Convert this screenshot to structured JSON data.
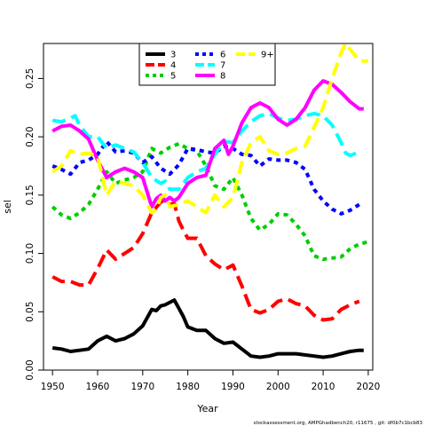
{
  "chart_data": {
    "type": "line",
    "title": "",
    "xlabel": "Year",
    "ylabel": "sel",
    "xlim": [
      1948,
      2021
    ],
    "ylim": [
      0,
      0.28
    ],
    "x_ticks": [
      1950,
      1960,
      1970,
      1980,
      1990,
      2000,
      2010,
      2020
    ],
    "y_ticks": [
      0.0,
      0.05,
      0.1,
      0.15,
      0.2,
      0.25
    ],
    "y_tick_labels": [
      "0.00",
      "0.05",
      "0.10",
      "0.15",
      "0.20",
      "0.25"
    ],
    "grid": false,
    "legend_position": "top-center",
    "footer": "stockassessment.org, AMPGhadbench20, r11675 , git: df0b7c1bcb83",
    "series": [
      {
        "name": "3",
        "color": "#000000",
        "dash": "solid",
        "x": [
          1950,
          1952,
          1954,
          1956,
          1958,
          1960,
          1962,
          1964,
          1966,
          1968,
          1970,
          1972,
          1973,
          1974,
          1975,
          1977,
          1978,
          1979,
          1980,
          1982,
          1984,
          1986,
          1988,
          1990,
          1992,
          1994,
          1996,
          1998,
          2000,
          2004,
          2008,
          2010,
          2012,
          2014,
          2016,
          2018,
          2019
        ],
        "y": [
          0.019,
          0.018,
          0.016,
          0.017,
          0.018,
          0.025,
          0.029,
          0.025,
          0.027,
          0.031,
          0.038,
          0.052,
          0.051,
          0.055,
          0.056,
          0.06,
          0.053,
          0.046,
          0.037,
          0.034,
          0.034,
          0.027,
          0.023,
          0.024,
          0.018,
          0.012,
          0.011,
          0.012,
          0.014,
          0.014,
          0.012,
          0.011,
          0.012,
          0.014,
          0.016,
          0.017,
          0.017
        ]
      },
      {
        "name": "4",
        "color": "#ff0000",
        "dash": "long",
        "x": [
          1950,
          1952,
          1954,
          1956,
          1958,
          1960,
          1962,
          1964,
          1966,
          1968,
          1970,
          1972,
          1974,
          1975,
          1976,
          1977,
          1978,
          1979,
          1980,
          1982,
          1984,
          1986,
          1988,
          1990,
          1992,
          1994,
          1996,
          1998,
          2000,
          2002,
          2004,
          2006,
          2008,
          2010,
          2012,
          2014,
          2016,
          2018
        ],
        "y": [
          0.08,
          0.076,
          0.076,
          0.073,
          0.073,
          0.087,
          0.103,
          0.095,
          0.1,
          0.105,
          0.117,
          0.135,
          0.144,
          0.146,
          0.142,
          0.143,
          0.128,
          0.12,
          0.113,
          0.113,
          0.098,
          0.091,
          0.086,
          0.09,
          0.072,
          0.052,
          0.049,
          0.052,
          0.059,
          0.061,
          0.057,
          0.055,
          0.047,
          0.043,
          0.044,
          0.052,
          0.056,
          0.059
        ]
      },
      {
        "name": "5",
        "color": "#00cd00",
        "dash": "short",
        "x": [
          1950,
          1952,
          1954,
          1956,
          1958,
          1960,
          1962,
          1964,
          1966,
          1968,
          1970,
          1972,
          1974,
          1976,
          1978,
          1980,
          1982,
          1984,
          1986,
          1988,
          1990,
          1992,
          1994,
          1996,
          1998,
          2000,
          2002,
          2004,
          2006,
          2008,
          2010,
          2012,
          2014,
          2016,
          2018,
          2020
        ],
        "y": [
          0.14,
          0.133,
          0.13,
          0.135,
          0.142,
          0.155,
          0.17,
          0.16,
          0.163,
          0.165,
          0.17,
          0.19,
          0.186,
          0.191,
          0.194,
          0.19,
          0.188,
          0.175,
          0.158,
          0.155,
          0.165,
          0.15,
          0.13,
          0.12,
          0.125,
          0.134,
          0.133,
          0.125,
          0.115,
          0.098,
          0.095,
          0.096,
          0.097,
          0.104,
          0.108,
          0.11
        ]
      },
      {
        "name": "6",
        "color": "#0000ff",
        "dash": "short",
        "x": [
          1950,
          1952,
          1954,
          1956,
          1958,
          1960,
          1962,
          1964,
          1966,
          1968,
          1970,
          1972,
          1974,
          1976,
          1978,
          1980,
          1982,
          1984,
          1986,
          1988,
          1990,
          1992,
          1994,
          1996,
          1998,
          2000,
          2002,
          2004,
          2006,
          2008,
          2010,
          2012,
          2014,
          2016,
          2018
        ],
        "y": [
          0.175,
          0.172,
          0.168,
          0.178,
          0.18,
          0.185,
          0.196,
          0.187,
          0.188,
          0.186,
          0.178,
          0.183,
          0.173,
          0.168,
          0.176,
          0.19,
          0.189,
          0.187,
          0.186,
          0.192,
          0.19,
          0.185,
          0.184,
          0.175,
          0.181,
          0.18,
          0.18,
          0.178,
          0.172,
          0.155,
          0.145,
          0.138,
          0.134,
          0.137,
          0.142
        ]
      },
      {
        "name": "7",
        "color": "#00ffff",
        "dash": "long",
        "x": [
          1950,
          1952,
          1954,
          1955,
          1956,
          1958,
          1960,
          1962,
          1964,
          1966,
          1968,
          1970,
          1972,
          1974,
          1975,
          1976,
          1978,
          1980,
          1982,
          1984,
          1986,
          1988,
          1990,
          1992,
          1994,
          1996,
          1998,
          2000,
          2002,
          2004,
          2006,
          2008,
          2010,
          2012,
          2014,
          2015,
          2016,
          2018
        ],
        "y": [
          0.214,
          0.213,
          0.216,
          0.218,
          0.21,
          0.2,
          0.2,
          0.19,
          0.193,
          0.19,
          0.187,
          0.178,
          0.165,
          0.16,
          0.162,
          0.155,
          0.155,
          0.165,
          0.17,
          0.173,
          0.185,
          0.196,
          0.195,
          0.205,
          0.213,
          0.218,
          0.22,
          0.216,
          0.214,
          0.215,
          0.218,
          0.22,
          0.218,
          0.21,
          0.195,
          0.186,
          0.184,
          0.187
        ]
      },
      {
        "name": "8",
        "color": "#ff00ff",
        "dash": "solid",
        "x": [
          1950,
          1952,
          1954,
          1956,
          1958,
          1960,
          1962,
          1964,
          1966,
          1968,
          1970,
          1972,
          1973,
          1974,
          1975,
          1976,
          1977,
          1978,
          1980,
          1982,
          1984,
          1986,
          1988,
          1989,
          1990,
          1992,
          1994,
          1996,
          1998,
          2000,
          2002,
          2004,
          2006,
          2008,
          2010,
          2012,
          2014,
          2016,
          2018,
          2019
        ],
        "y": [
          0.205,
          0.209,
          0.21,
          0.205,
          0.198,
          0.18,
          0.165,
          0.17,
          0.173,
          0.17,
          0.165,
          0.14,
          0.147,
          0.15,
          0.145,
          0.148,
          0.145,
          0.148,
          0.16,
          0.165,
          0.167,
          0.19,
          0.197,
          0.185,
          0.192,
          0.212,
          0.225,
          0.229,
          0.225,
          0.215,
          0.21,
          0.215,
          0.225,
          0.24,
          0.248,
          0.245,
          0.238,
          0.23,
          0.224,
          0.224
        ]
      },
      {
        "name": "9+",
        "color": "#ffff00",
        "dash": "long",
        "x": [
          1950,
          1952,
          1954,
          1956,
          1958,
          1960,
          1962,
          1964,
          1966,
          1968,
          1970,
          1972,
          1973,
          1974,
          1975,
          1976,
          1978,
          1980,
          1982,
          1984,
          1986,
          1988,
          1990,
          1992,
          1994,
          1996,
          1998,
          2000,
          2002,
          2004,
          2006,
          2008,
          2010,
          2012,
          2014,
          2015,
          2016,
          2018,
          2020
        ],
        "y": [
          0.17,
          0.175,
          0.188,
          0.185,
          0.186,
          0.183,
          0.15,
          0.162,
          0.16,
          0.158,
          0.15,
          0.135,
          0.138,
          0.148,
          0.15,
          0.14,
          0.142,
          0.145,
          0.14,
          0.135,
          0.15,
          0.14,
          0.148,
          0.178,
          0.195,
          0.2,
          0.188,
          0.185,
          0.186,
          0.19,
          0.192,
          0.208,
          0.225,
          0.25,
          0.272,
          0.28,
          0.275,
          0.265,
          0.265
        ]
      }
    ]
  }
}
